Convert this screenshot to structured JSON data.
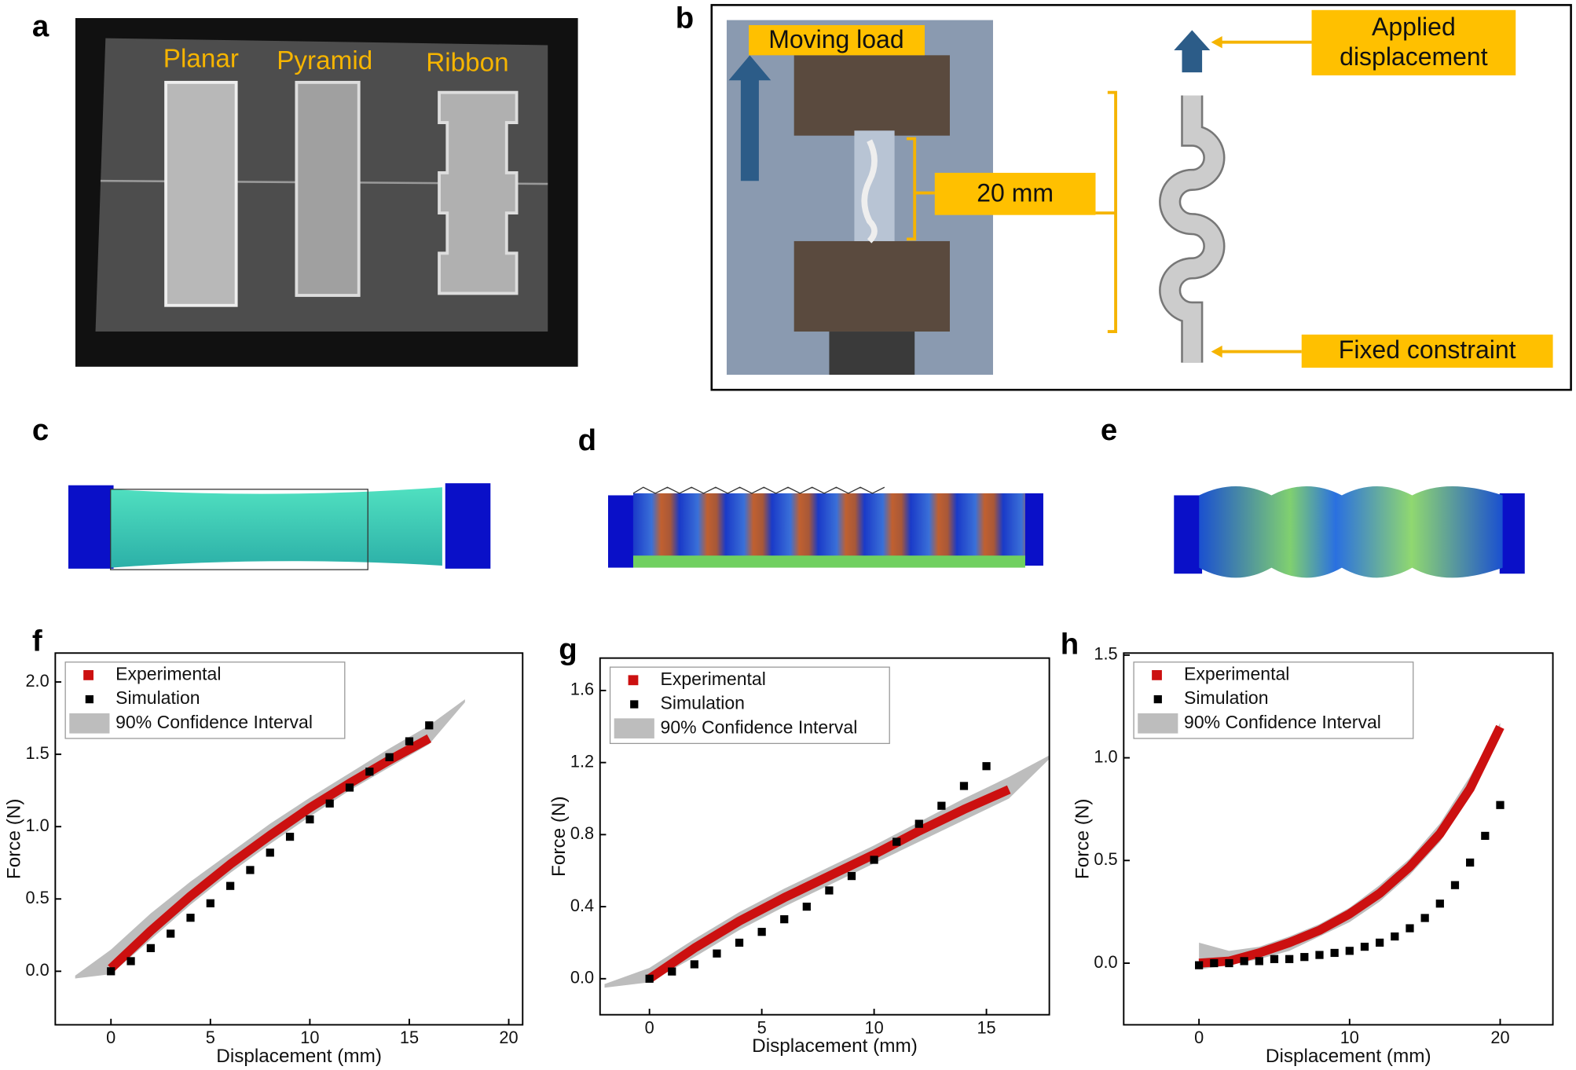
{
  "panel_labels": [
    "a",
    "b",
    "c",
    "d",
    "e",
    "f",
    "g",
    "h"
  ],
  "panel_a": {
    "labels": [
      "Planar",
      "Pyramid",
      "Ribbon"
    ]
  },
  "panel_b": {
    "moving_load": "Moving load",
    "gauge_length": "20 mm",
    "applied": "Applied displacement",
    "fixed": "Fixed constraint"
  },
  "chart_data": [
    {
      "type": "scatter",
      "x_label": "Displacement (mm)",
      "y_label": "Force (N)",
      "xlim": [
        -2.8,
        20.7
      ],
      "ylim": [
        -0.37,
        2.2
      ],
      "xticks": [
        0,
        5,
        10,
        15,
        20
      ],
      "yticks": [
        {
          "value": 0,
          "label": "0.0"
        },
        0.5,
        {
          "value": 1,
          "label": "1.0"
        },
        1.5,
        {
          "value": 2,
          "label": "2.0"
        }
      ],
      "series": [
        {
          "name": "Experimental",
          "color": "#cc1010",
          "mark": "line",
          "x": [
            0,
            2,
            4,
            6,
            8,
            10,
            12,
            14,
            16
          ],
          "values": [
            0.02,
            0.28,
            0.52,
            0.74,
            0.94,
            1.13,
            1.3,
            1.46,
            1.61
          ]
        },
        {
          "name": "Simulation",
          "color": "#000000",
          "mark": "square",
          "x": [
            0,
            1,
            2,
            3,
            4,
            5,
            6,
            7,
            8,
            9,
            10,
            11,
            12,
            13,
            14,
            15,
            16
          ],
          "values": [
            0,
            0.07,
            0.16,
            0.26,
            0.37,
            0.47,
            0.59,
            0.7,
            0.82,
            0.93,
            1.05,
            1.16,
            1.27,
            1.38,
            1.48,
            1.59,
            1.7
          ]
        },
        {
          "name": "90% Confidence Interval",
          "color": "#bdbdbd",
          "mark": "band",
          "x": [
            -1.8,
            0,
            2,
            4,
            6,
            8,
            10,
            12,
            14,
            16,
            17.8
          ],
          "lower": [
            -0.05,
            -0.02,
            0.22,
            0.46,
            0.68,
            0.88,
            1.07,
            1.25,
            1.41,
            1.57,
            1.86
          ],
          "upper": [
            -0.03,
            0.15,
            0.4,
            0.62,
            0.82,
            1.02,
            1.2,
            1.37,
            1.54,
            1.7,
            1.88
          ]
        }
      ]
    },
    {
      "type": "scatter",
      "x_label": "Displacement (mm)",
      "y_label": "Force (N)",
      "xlim": [
        -2.2,
        17.8
      ],
      "ylim": [
        -0.2,
        1.78
      ],
      "xticks": [
        0,
        5,
        10,
        15
      ],
      "yticks": [
        {
          "value": 0,
          "label": "0.0"
        },
        0.4,
        0.8,
        1.2,
        1.6
      ],
      "series": [
        {
          "name": "Experimental",
          "color": "#cc1010",
          "mark": "line",
          "x": [
            0,
            2,
            4,
            6,
            8,
            10,
            12,
            14,
            16
          ],
          "values": [
            0,
            0.17,
            0.32,
            0.45,
            0.57,
            0.69,
            0.82,
            0.94,
            1.05
          ]
        },
        {
          "name": "Simulation",
          "color": "#000000",
          "mark": "square",
          "x": [
            0,
            1,
            2,
            3,
            4,
            5,
            6,
            7,
            8,
            9,
            10,
            11,
            12,
            13,
            14,
            15
          ],
          "values": [
            0,
            0.04,
            0.08,
            0.14,
            0.2,
            0.26,
            0.33,
            0.4,
            0.49,
            0.57,
            0.66,
            0.76,
            0.86,
            0.96,
            1.07,
            1.18
          ]
        },
        {
          "name": "90% Confidence Interval",
          "color": "#bdbdbd",
          "mark": "band",
          "x": [
            -2,
            0,
            2,
            4,
            6,
            8,
            10,
            12,
            14,
            16,
            17.8
          ],
          "lower": [
            -0.05,
            -0.02,
            0.12,
            0.27,
            0.4,
            0.52,
            0.64,
            0.76,
            0.88,
            1.0,
            1.22
          ],
          "upper": [
            -0.03,
            0.06,
            0.22,
            0.37,
            0.5,
            0.62,
            0.74,
            0.87,
            1.0,
            1.12,
            1.24
          ]
        }
      ]
    },
    {
      "type": "scatter",
      "x_label": "Displacement (mm)",
      "y_label": "Force (N)",
      "xlim": [
        -5,
        23.5
      ],
      "ylim": [
        -0.3,
        1.51
      ],
      "xticks": [
        0,
        10,
        20
      ],
      "yticks": [
        {
          "value": 0,
          "label": "0.0"
        },
        0.5,
        {
          "value": 1,
          "label": "1.0"
        },
        1.5
      ],
      "series": [
        {
          "name": "Experimental",
          "color": "#cc1010",
          "mark": "line",
          "x": [
            0,
            2,
            4,
            6,
            8,
            10,
            12,
            14,
            16,
            18,
            20
          ],
          "values": [
            0,
            0.01,
            0.05,
            0.1,
            0.16,
            0.24,
            0.34,
            0.47,
            0.63,
            0.85,
            1.15
          ]
        },
        {
          "name": "Simulation",
          "color": "#000000",
          "mark": "square",
          "x": [
            0,
            1,
            2,
            3,
            4,
            5,
            6,
            7,
            8,
            9,
            10,
            11,
            12,
            13,
            14,
            15,
            16,
            17,
            18,
            19,
            20
          ],
          "values": [
            -0.01,
            0,
            0,
            0.01,
            0.01,
            0.02,
            0.02,
            0.03,
            0.04,
            0.05,
            0.06,
            0.08,
            0.1,
            0.13,
            0.17,
            0.22,
            0.29,
            0.38,
            0.49,
            0.62,
            0.77
          ]
        },
        {
          "name": "90% Confidence Interval",
          "color": "#bdbdbd",
          "mark": "band",
          "x": [
            0,
            2,
            4,
            6,
            8,
            10,
            12,
            14,
            16,
            18,
            20
          ],
          "lower": [
            -0.03,
            -0.01,
            0.02,
            0.06,
            0.13,
            0.2,
            0.3,
            0.43,
            0.59,
            0.81,
            1.1
          ],
          "upper": [
            0.1,
            0.06,
            0.08,
            0.13,
            0.19,
            0.27,
            0.38,
            0.51,
            0.68,
            0.91,
            1.17
          ]
        }
      ]
    }
  ]
}
